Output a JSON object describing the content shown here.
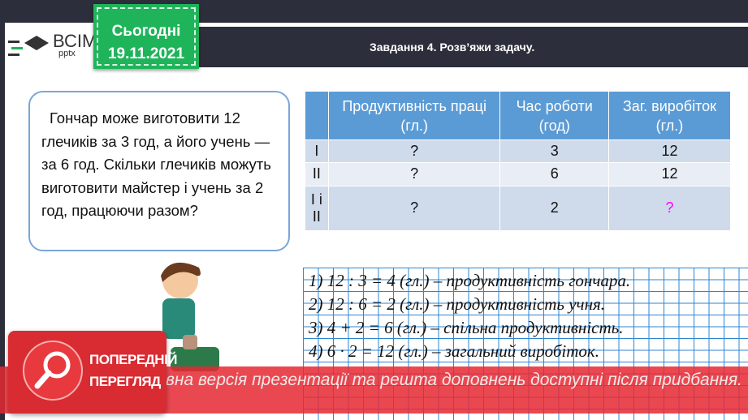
{
  "logo": {
    "brand": "ВСІМ",
    "sub": "pptx"
  },
  "badge": {
    "label": "Сьогодні",
    "date": "19.11.2021"
  },
  "header": {
    "title": "Завдання 4. Розв’яжи задачу."
  },
  "task": {
    "text": "Гончар може виготовити 12 глечиків за 3 год, а його учень — за 6 год. Скільки глечиків можуть виготовити майстер і учень за 2 год, працюючи разом?"
  },
  "table": {
    "headers": [
      "",
      "Продуктивність праці (гл.)",
      "Час роботи (год)",
      "Заг. виробіток (гл.)"
    ],
    "rows": [
      [
        "I",
        "?",
        "3",
        "12"
      ],
      [
        "II",
        "?",
        "6",
        "12"
      ],
      [
        "I і II",
        "?",
        "2",
        "?"
      ]
    ],
    "highlight_color": "#ff00ff"
  },
  "solution": [
    "1) 12 : 3 = 4 (гл.) – продуктивність гончара.",
    "2) 12 : 6 = 2 (гл.) – продуктивність учня.",
    "3) 4 + 2 = 6 (гл.) – спільна продуктивність.",
    "4) 6 · 2 = 12 (гл.) – загальний виробіток."
  ],
  "preview": {
    "label_1": "ПОПЕРЕДНІЙ",
    "label_2": "ПЕРЕГЛЯД",
    "banner": "Повна версія презентації та решта доповнень доступні після придбання."
  }
}
